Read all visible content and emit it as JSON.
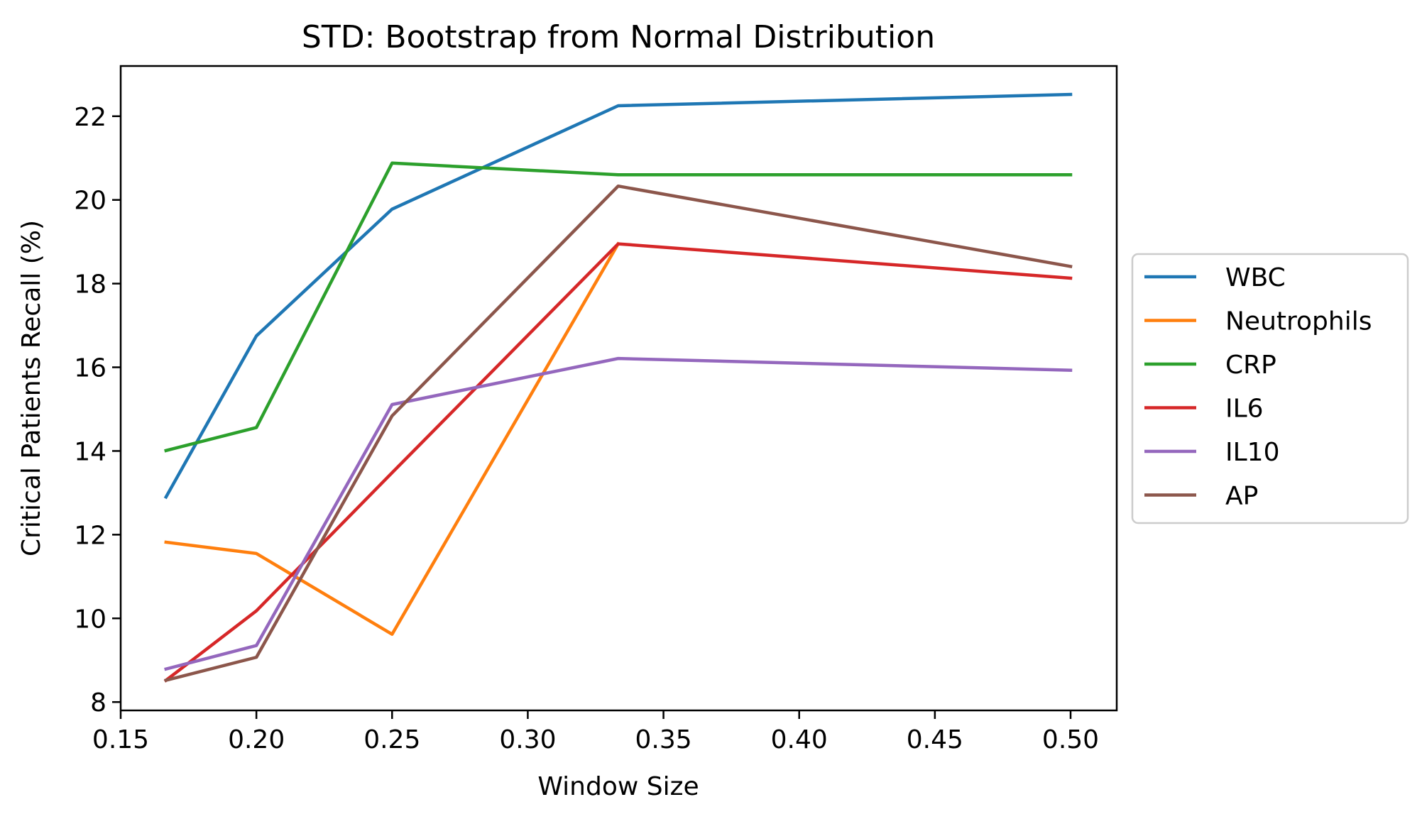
{
  "chart_data": {
    "type": "line",
    "title": "STD: Bootstrap from Normal Distribution",
    "xlabel": "Window Size",
    "ylabel": "Critical Patients Recall (%)",
    "xlim": [
      0.15,
      0.517
    ],
    "ylim": [
      7.8,
      23.2
    ],
    "xticks": [
      "0.15",
      "0.20",
      "0.25",
      "0.30",
      "0.35",
      "0.40",
      "0.45",
      "0.50"
    ],
    "yticks": [
      "8",
      "10",
      "12",
      "14",
      "16",
      "18",
      "20",
      "22"
    ],
    "x": [
      0.1667,
      0.2,
      0.25,
      0.3333,
      0.5
    ],
    "grid": false,
    "legend_position": "center-right outside",
    "series": [
      {
        "name": "WBC",
        "color": "#1f77b4",
        "values": [
          12.9,
          16.75,
          19.78,
          22.25,
          22.52
        ]
      },
      {
        "name": "Neutrophils",
        "color": "#ff7f0e",
        "values": [
          11.82,
          11.55,
          9.62,
          18.95,
          null
        ]
      },
      {
        "name": "CRP",
        "color": "#2ca02c",
        "values": [
          14.01,
          14.56,
          20.88,
          20.6,
          20.6
        ]
      },
      {
        "name": "IL6",
        "color": "#d62728",
        "values": [
          8.52,
          10.18,
          13.48,
          18.95,
          18.13
        ]
      },
      {
        "name": "IL10",
        "color": "#9467bd",
        "values": [
          8.79,
          9.35,
          15.11,
          16.21,
          15.93
        ]
      },
      {
        "name": "AP",
        "color": "#8c564b",
        "values": [
          8.52,
          9.07,
          14.84,
          20.33,
          18.41
        ]
      }
    ]
  }
}
